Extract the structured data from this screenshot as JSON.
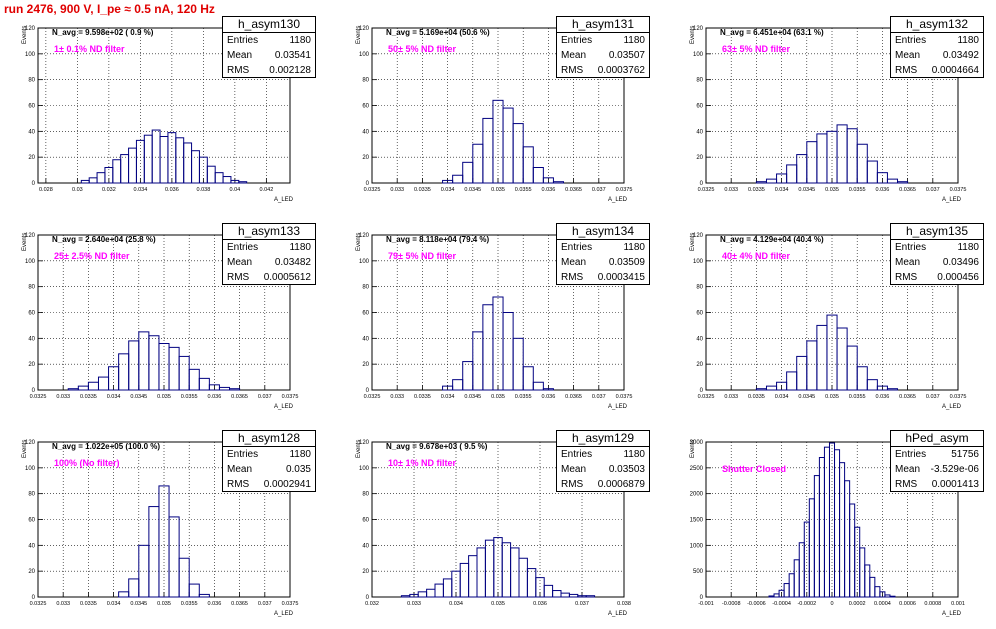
{
  "page": {
    "title": "run 2476,   900 V, I_pe ≈ 0.5 nA, 120 Hz"
  },
  "chart_data": [
    {
      "type": "bar",
      "name": "h_asym130",
      "entries": "1180",
      "mean": "0.03541",
      "rms": "0.002128",
      "n_avg": "N_avg = 9.598e+02 ( 0.9 %)",
      "filter": "1± 0.1% ND filter",
      "ylabel": "Events",
      "xlabel": "A_LED",
      "xlim": [
        0.0275,
        0.0435
      ],
      "ylim": [
        0,
        120
      ],
      "xticks": [
        "0.028",
        "0.03",
        "0.032",
        "0.034",
        "0.036",
        "0.038",
        "0.04",
        "0.042"
      ],
      "xtick_values": [
        0.028,
        0.03,
        0.032,
        0.034,
        0.036,
        0.038,
        0.04,
        0.042
      ],
      "yticks": [
        "0",
        "20",
        "40",
        "60",
        "80",
        "100",
        "120"
      ],
      "x": [
        0.0305,
        0.031,
        0.0315,
        0.032,
        0.0325,
        0.033,
        0.0335,
        0.034,
        0.0345,
        0.035,
        0.0355,
        0.036,
        0.0365,
        0.037,
        0.0375,
        0.038,
        0.0385,
        0.039,
        0.0395,
        0.04,
        0.0405
      ],
      "values": [
        2,
        4,
        8,
        12,
        18,
        22,
        27,
        33,
        37,
        41,
        36,
        39,
        35,
        31,
        25,
        20,
        13,
        8,
        5,
        2,
        1
      ]
    },
    {
      "type": "bar",
      "name": "h_asym131",
      "entries": "1180",
      "mean": "0.03507",
      "rms": "0.0003762",
      "n_avg": "N_avg = 5.169e+04 (50.6 %)",
      "filter": "50± 5% ND filter",
      "ylabel": "Events",
      "xlabel": "A_LED",
      "xlim": [
        0.0325,
        0.0375
      ],
      "ylim": [
        0,
        120
      ],
      "xticks": [
        "0.0325",
        "0.033",
        "0.0335",
        "0.034",
        "0.0345",
        "0.035",
        "0.0355",
        "0.036",
        "0.0365",
        "0.037",
        "0.0375"
      ],
      "xtick_values": [
        0.0325,
        0.033,
        0.0335,
        0.034,
        0.0345,
        0.035,
        0.0355,
        0.036,
        0.0365,
        0.037,
        0.0375
      ],
      "yticks": [
        "0",
        "20",
        "40",
        "60",
        "80",
        "100",
        "120"
      ],
      "x": [
        0.034,
        0.0342,
        0.0344,
        0.0346,
        0.0348,
        0.035,
        0.0352,
        0.0354,
        0.0356,
        0.0358,
        0.036,
        0.0362
      ],
      "values": [
        2,
        6,
        16,
        30,
        50,
        64,
        58,
        46,
        28,
        12,
        4,
        1
      ]
    },
    {
      "type": "bar",
      "name": "h_asym132",
      "entries": "1180",
      "mean": "0.03492",
      "rms": "0.0004664",
      "n_avg": "N_avg = 6.451e+04 (63.1 %)",
      "filter": "63± 5% ND filter",
      "ylabel": "Events",
      "xlabel": "A_LED",
      "xlim": [
        0.0325,
        0.0375
      ],
      "ylim": [
        0,
        120
      ],
      "xticks": [
        "0.0325",
        "0.033",
        "0.0335",
        "0.034",
        "0.0345",
        "0.035",
        "0.0355",
        "0.036",
        "0.0365",
        "0.037",
        "0.0375"
      ],
      "xtick_values": [
        0.0325,
        0.033,
        0.0335,
        0.034,
        0.0345,
        0.035,
        0.0355,
        0.036,
        0.0365,
        0.037,
        0.0375
      ],
      "yticks": [
        "0",
        "20",
        "40",
        "60",
        "80",
        "100",
        "120"
      ],
      "x": [
        0.0336,
        0.0338,
        0.034,
        0.0342,
        0.0344,
        0.0346,
        0.0348,
        0.035,
        0.0352,
        0.0354,
        0.0356,
        0.0358,
        0.036,
        0.0362,
        0.0364
      ],
      "values": [
        1,
        3,
        7,
        14,
        22,
        32,
        38,
        40,
        45,
        42,
        30,
        17,
        8,
        3,
        1
      ]
    },
    {
      "type": "bar",
      "name": "h_asym133",
      "entries": "1180",
      "mean": "0.03482",
      "rms": "0.0005612",
      "n_avg": "N_avg = 2.640e+04 (25.8 %)",
      "filter": "25± 2.5% ND filter",
      "ylabel": "Events",
      "xlabel": "A_LED",
      "xlim": [
        0.0325,
        0.0375
      ],
      "ylim": [
        0,
        120
      ],
      "xticks": [
        "0.0325",
        "0.033",
        "0.0335",
        "0.034",
        "0.0345",
        "0.035",
        "0.0355",
        "0.036",
        "0.0365",
        "0.037",
        "0.0375"
      ],
      "xtick_values": [
        0.0325,
        0.033,
        0.0335,
        0.034,
        0.0345,
        0.035,
        0.0355,
        0.036,
        0.0365,
        0.037,
        0.0375
      ],
      "yticks": [
        "0",
        "20",
        "40",
        "60",
        "80",
        "100",
        "120"
      ],
      "x": [
        0.0332,
        0.0334,
        0.0336,
        0.0338,
        0.034,
        0.0342,
        0.0344,
        0.0346,
        0.0348,
        0.035,
        0.0352,
        0.0354,
        0.0356,
        0.0358,
        0.036,
        0.0362,
        0.0364
      ],
      "values": [
        1,
        3,
        6,
        10,
        18,
        28,
        38,
        45,
        42,
        36,
        33,
        26,
        16,
        9,
        4,
        2,
        1
      ]
    },
    {
      "type": "bar",
      "name": "h_asym134",
      "entries": "1180",
      "mean": "0.03509",
      "rms": "0.0003415",
      "n_avg": "N_avg = 8.118e+04 (79.4 %)",
      "filter": "79± 5% ND filter",
      "ylabel": "Events",
      "xlabel": "A_LED",
      "xlim": [
        0.0325,
        0.0375
      ],
      "ylim": [
        0,
        120
      ],
      "xticks": [
        "0.0325",
        "0.033",
        "0.0335",
        "0.034",
        "0.0345",
        "0.035",
        "0.0355",
        "0.036",
        "0.0365",
        "0.037",
        "0.0375"
      ],
      "xtick_values": [
        0.0325,
        0.033,
        0.0335,
        0.034,
        0.0345,
        0.035,
        0.0355,
        0.036,
        0.0365,
        0.037,
        0.0375
      ],
      "yticks": [
        "0",
        "20",
        "40",
        "60",
        "80",
        "100",
        "120"
      ],
      "x": [
        0.034,
        0.0342,
        0.0344,
        0.0346,
        0.0348,
        0.035,
        0.0352,
        0.0354,
        0.0356,
        0.0358,
        0.036
      ],
      "values": [
        3,
        8,
        22,
        45,
        66,
        72,
        60,
        40,
        18,
        6,
        1
      ]
    },
    {
      "type": "bar",
      "name": "h_asym135",
      "entries": "1180",
      "mean": "0.03496",
      "rms": "0.000456",
      "n_avg": "N_avg = 4.129e+04 (40.4 %)",
      "filter": "40± 4% ND filter",
      "ylabel": "Events",
      "xlabel": "A_LED",
      "xlim": [
        0.0325,
        0.0375
      ],
      "ylim": [
        0,
        120
      ],
      "xticks": [
        "0.0325",
        "0.033",
        "0.0335",
        "0.034",
        "0.0345",
        "0.035",
        "0.0355",
        "0.036",
        "0.0365",
        "0.037",
        "0.0375"
      ],
      "xtick_values": [
        0.0325,
        0.033,
        0.0335,
        0.034,
        0.0345,
        0.035,
        0.0355,
        0.036,
        0.0365,
        0.037,
        0.0375
      ],
      "yticks": [
        "0",
        "20",
        "40",
        "60",
        "80",
        "100",
        "120"
      ],
      "x": [
        0.0336,
        0.0338,
        0.034,
        0.0342,
        0.0344,
        0.0346,
        0.0348,
        0.035,
        0.0352,
        0.0354,
        0.0356,
        0.0358,
        0.036,
        0.0362
      ],
      "values": [
        1,
        3,
        6,
        14,
        26,
        38,
        50,
        58,
        48,
        34,
        18,
        8,
        3,
        1
      ]
    },
    {
      "type": "bar",
      "name": "h_asym128",
      "entries": "1180",
      "mean": "0.035",
      "rms": "0.0002941",
      "n_avg": "N_avg = 1.022e+05 (100.0 %)",
      "filter": "100% (No filter)",
      "ylabel": "Events",
      "xlabel": "A_LED",
      "xlim": [
        0.0325,
        0.0375
      ],
      "ylim": [
        0,
        120
      ],
      "xticks": [
        "0.0325",
        "0.033",
        "0.0335",
        "0.034",
        "0.0345",
        "0.035",
        "0.0355",
        "0.036",
        "0.0365",
        "0.037",
        "0.0375"
      ],
      "xtick_values": [
        0.0325,
        0.033,
        0.0335,
        0.034,
        0.0345,
        0.035,
        0.0355,
        0.036,
        0.0365,
        0.037,
        0.0375
      ],
      "yticks": [
        "0",
        "20",
        "40",
        "60",
        "80",
        "100",
        "120"
      ],
      "x": [
        0.0342,
        0.0344,
        0.0346,
        0.0348,
        0.035,
        0.0352,
        0.0354,
        0.0356,
        0.0358
      ],
      "values": [
        4,
        14,
        40,
        70,
        86,
        62,
        30,
        10,
        2
      ]
    },
    {
      "type": "bar",
      "name": "h_asym129",
      "entries": "1180",
      "mean": "0.03503",
      "rms": "0.0006879",
      "n_avg": "N_avg = 9.678e+03 ( 9.5 %)",
      "filter": "10± 1% ND filter",
      "ylabel": "Events",
      "xlabel": "A_LED",
      "xlim": [
        0.032,
        0.038
      ],
      "ylim": [
        0,
        120
      ],
      "xticks": [
        "0.032",
        "0.033",
        "0.034",
        "0.035",
        "0.036",
        "0.037",
        "0.038"
      ],
      "xtick_values": [
        0.032,
        0.033,
        0.034,
        0.035,
        0.036,
        0.037,
        0.038
      ],
      "yticks": [
        "0",
        "20",
        "40",
        "60",
        "80",
        "100",
        "120"
      ],
      "x": [
        0.0328,
        0.033,
        0.0332,
        0.0334,
        0.0336,
        0.0338,
        0.034,
        0.0342,
        0.0344,
        0.0346,
        0.0348,
        0.035,
        0.0352,
        0.0354,
        0.0356,
        0.0358,
        0.036,
        0.0362,
        0.0364,
        0.0366,
        0.0368,
        0.037,
        0.0372
      ],
      "values": [
        1,
        2,
        4,
        6,
        10,
        14,
        20,
        26,
        32,
        38,
        44,
        46,
        42,
        38,
        30,
        22,
        15,
        9,
        5,
        3,
        2,
        1,
        1
      ]
    },
    {
      "type": "bar",
      "name": "hPed_asym",
      "entries": "51756",
      "mean": "-3.529e-06",
      "rms": "0.0001413",
      "n_avg": "",
      "filter": "Shutter Closed",
      "ylabel": "Events",
      "xlabel": "A_LED",
      "xlim": [
        -0.001,
        0.001
      ],
      "ylim": [
        0,
        3000
      ],
      "xticks": [
        "-0.001",
        "-0.0008",
        "-0.0006",
        "-0.0004",
        "-0.0002",
        "0",
        "0.0002",
        "0.0004",
        "0.0006",
        "0.0008",
        "0.001"
      ],
      "xtick_values": [
        -0.001,
        -0.0008,
        -0.0006,
        -0.0004,
        -0.0002,
        0,
        0.0002,
        0.0004,
        0.0006,
        0.0008,
        0.001
      ],
      "yticks": [
        "0",
        "500",
        "1000",
        "1500",
        "2000",
        "2500",
        "3000"
      ],
      "x": [
        -0.00048,
        -0.00044,
        -0.0004,
        -0.00036,
        -0.00032,
        -0.00028,
        -0.00024,
        -0.0002,
        -0.00016,
        -0.00012,
        -8e-05,
        -4e-05,
        0,
        4e-05,
        8e-05,
        0.00012,
        0.00016,
        0.0002,
        0.00024,
        0.00028,
        0.00032,
        0.00036,
        0.0004,
        0.00044,
        0.00048
      ],
      "values": [
        20,
        60,
        130,
        260,
        450,
        720,
        1050,
        1450,
        1900,
        2350,
        2700,
        2900,
        2980,
        2850,
        2600,
        2250,
        1800,
        1350,
        950,
        620,
        380,
        200,
        100,
        40,
        15
      ]
    }
  ]
}
